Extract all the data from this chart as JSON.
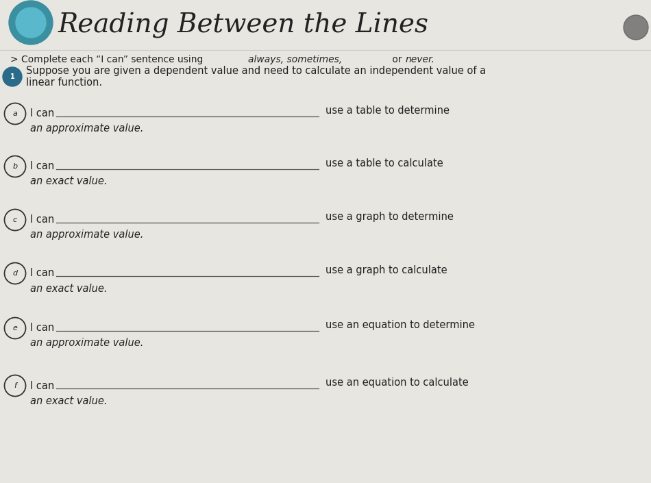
{
  "title": "Reading Between the Lines",
  "instruction": "> Complete each “I can” sentence using always, sometimes, or never.",
  "scenario_line1": "Suppose you are given a dependent value and need to calculate an independent value of a",
  "scenario_line2": "linear function.",
  "background_color": "#e8e6e0",
  "items": [
    {
      "label": "a",
      "right_text": "use a table to determine",
      "bottom_text": "an approximate value."
    },
    {
      "label": "b",
      "right_text": "use a table to calculate",
      "bottom_text": "an exact value."
    },
    {
      "label": "c",
      "right_text": "use a graph to determine",
      "bottom_text": "an approximate value."
    },
    {
      "label": "d",
      "right_text": "use a graph to calculate",
      "bottom_text": "an exact value."
    },
    {
      "label": "e",
      "right_text": "use an equation to determine",
      "bottom_text": "an approximate value."
    },
    {
      "label": "f",
      "right_text": "use an equation to calculate",
      "bottom_text": "an exact value."
    }
  ],
  "circle_outline_color": "#333333",
  "scenario_circle_color": "#2a6b8a",
  "title_color": "#222222",
  "text_color": "#222222",
  "line_color": "#555555",
  "title_fontsize": 28,
  "instruction_fontsize": 10,
  "body_fontsize": 10.5,
  "item_fontsize": 10.5
}
